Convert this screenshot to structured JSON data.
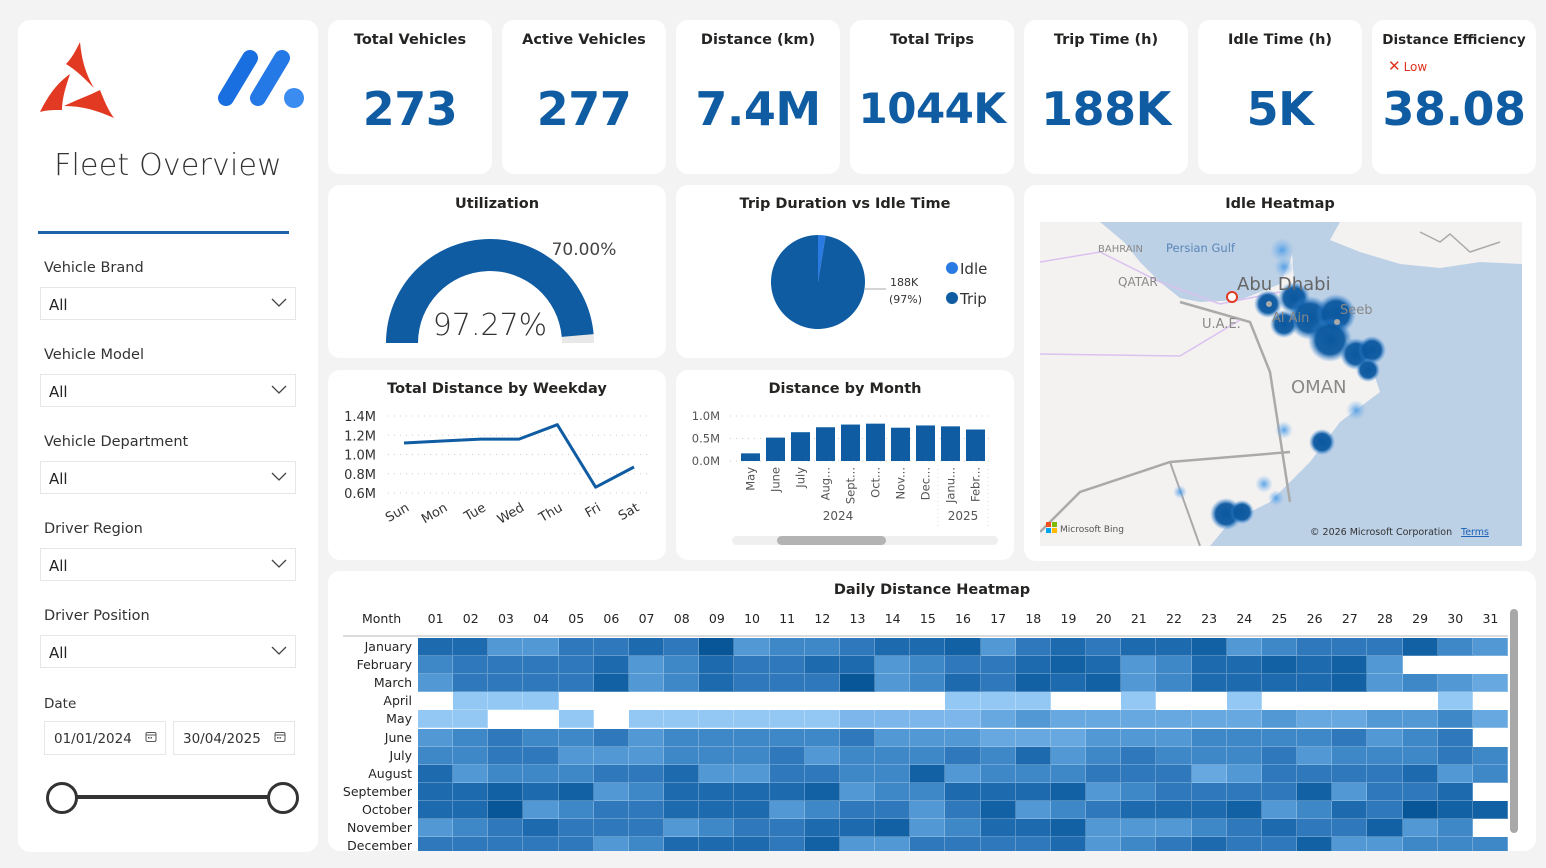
{
  "sidebar": {
    "title": "Fleet Overview",
    "logos": {
      "left": "red-tri-swirl-logo",
      "right": "blue-dots-logo"
    },
    "filters": [
      {
        "label": "Vehicle Brand",
        "value": "All"
      },
      {
        "label": "Vehicle Model",
        "value": "All"
      },
      {
        "label": "Vehicle Department",
        "value": "All"
      },
      {
        "label": "Driver Region",
        "value": "All"
      },
      {
        "label": "Driver Position",
        "value": "All"
      }
    ],
    "date": {
      "label": "Date",
      "start": "01/01/2024",
      "end": "30/04/2025",
      "icon": "calendar-icon"
    }
  },
  "kpis": [
    {
      "title": "Total Vehicles",
      "value": "273"
    },
    {
      "title": "Active Vehicles",
      "value": "277"
    },
    {
      "title": "Distance (km)",
      "value": "7.4M"
    },
    {
      "title": "Total Trips",
      "value": "1044K"
    },
    {
      "title": "Trip Time (h)",
      "value": "188K"
    },
    {
      "title": "Idle Time (h)",
      "value": "5K"
    },
    {
      "title": "Distance Efficiency",
      "value": "38.08",
      "flag": "Low",
      "flag_icon": "x-icon",
      "flag_color": "#e0331f"
    }
  ],
  "colors": {
    "primary": "#0f5ca3",
    "accent": "#1e62a8",
    "idle": "#2a7ae4",
    "gauge_bg": "#e8e8e8"
  },
  "utilization": {
    "title": "Utilization",
    "value_label": "97.27%",
    "value": 0.9727,
    "target_label": "70.00%",
    "target": 0.7
  },
  "pie": {
    "title": "Trip Duration vs Idle Time",
    "label_value": "188K",
    "label_pct": "(97%)",
    "legend": [
      {
        "name": "Idle",
        "color": "#2a7ae4"
      },
      {
        "name": "Trip",
        "color": "#0f5ca3"
      }
    ]
  },
  "map": {
    "title": "Idle Heatmap",
    "labels": {
      "bahrain": "BAHRAIN",
      "gulf": "Persian Gulf",
      "qatar": "QATAR",
      "abudhabi": "Abu Dhabi",
      "uae": "U.A.E.",
      "alain": "Al Ain",
      "seeb": "Seeb",
      "oman": "OMAN"
    },
    "attribution": "© 2026 Microsoft Corporation",
    "terms": "Terms",
    "brand": "Microsoft Bing"
  },
  "heatmap": {
    "title": "Daily Distance Heatmap",
    "row_header": "Month",
    "days": [
      "01",
      "02",
      "03",
      "04",
      "05",
      "06",
      "07",
      "08",
      "09",
      "10",
      "11",
      "12",
      "13",
      "14",
      "15",
      "16",
      "17",
      "18",
      "19",
      "20",
      "21",
      "22",
      "23",
      "24",
      "25",
      "26",
      "27",
      "28",
      "29",
      "30",
      "31"
    ],
    "months": [
      "January",
      "February",
      "March",
      "April",
      "May",
      "June",
      "July",
      "August",
      "September",
      "October",
      "November",
      "December"
    ],
    "scale_note": "0 = no data, 1 (lightest) to 9 (darkest)",
    "levels": [
      [
        7,
        7,
        4,
        4,
        6,
        6,
        7,
        6,
        9,
        4,
        5,
        5,
        6,
        7,
        7,
        8,
        4,
        6,
        7,
        6,
        7,
        7,
        8,
        4,
        5,
        6,
        6,
        6,
        8,
        5,
        4
      ],
      [
        5,
        6,
        6,
        6,
        6,
        7,
        4,
        5,
        7,
        6,
        6,
        7,
        7,
        4,
        5,
        6,
        6,
        7,
        8,
        7,
        4,
        5,
        7,
        7,
        8,
        7,
        8,
        4,
        0,
        0,
        0
      ],
      [
        4,
        6,
        6,
        6,
        6,
        8,
        4,
        5,
        7,
        6,
        6,
        6,
        9,
        4,
        5,
        7,
        6,
        8,
        7,
        8,
        4,
        5,
        7,
        7,
        7,
        7,
        8,
        4,
        5,
        4,
        3
      ],
      [
        0,
        1,
        1,
        1,
        0,
        0,
        0,
        0,
        0,
        0,
        0,
        0,
        0,
        0,
        0,
        1,
        1,
        1,
        0,
        0,
        1,
        0,
        0,
        1,
        0,
        0,
        0,
        0,
        0,
        1,
        0
      ],
      [
        1,
        1,
        0,
        0,
        1,
        0,
        1,
        1,
        1,
        1,
        1,
        1,
        2,
        2,
        2,
        2,
        3,
        4,
        3,
        3,
        3,
        3,
        3,
        3,
        4,
        3,
        3,
        4,
        4,
        5,
        3
      ],
      [
        4,
        5,
        6,
        5,
        5,
        6,
        4,
        5,
        5,
        5,
        5,
        5,
        6,
        4,
        4,
        4,
        3,
        3,
        3,
        4,
        4,
        4,
        5,
        5,
        5,
        5,
        6,
        4,
        5,
        6,
        0
      ],
      [
        5,
        5,
        6,
        6,
        4,
        4,
        4,
        5,
        5,
        5,
        6,
        4,
        5,
        5,
        5,
        6,
        5,
        7,
        4,
        5,
        6,
        5,
        5,
        5,
        6,
        4,
        5,
        5,
        5,
        6,
        5
      ],
      [
        7,
        4,
        5,
        5,
        5,
        6,
        6,
        7,
        4,
        4,
        6,
        6,
        5,
        5,
        8,
        4,
        5,
        5,
        5,
        6,
        6,
        6,
        3,
        4,
        6,
        6,
        6,
        6,
        7,
        4,
        5
      ],
      [
        7,
        7,
        8,
        7,
        8,
        4,
        5,
        7,
        7,
        7,
        7,
        8,
        4,
        5,
        5,
        7,
        7,
        7,
        8,
        4,
        5,
        6,
        6,
        6,
        6,
        8,
        4,
        6,
        6,
        7,
        0
      ],
      [
        7,
        7,
        9,
        4,
        5,
        6,
        6,
        7,
        7,
        7,
        4,
        5,
        6,
        6,
        4,
        6,
        8,
        4,
        5,
        6,
        7,
        7,
        7,
        8,
        4,
        5,
        7,
        6,
        9,
        8,
        8
      ],
      [
        4,
        5,
        6,
        7,
        6,
        6,
        6,
        4,
        5,
        6,
        6,
        7,
        7,
        8,
        4,
        5,
        7,
        7,
        8,
        4,
        4,
        4,
        5,
        6,
        7,
        6,
        6,
        8,
        4,
        5,
        0
      ],
      [
        6,
        6,
        6,
        6,
        6,
        4,
        5,
        7,
        7,
        7,
        6,
        8,
        4,
        4,
        6,
        6,
        6,
        6,
        7,
        4,
        5,
        6,
        7,
        6,
        6,
        8,
        4,
        4,
        5,
        5,
        5
      ]
    ]
  },
  "chart_data": [
    {
      "type": "line",
      "title": "Total Distance by Weekday",
      "categories": [
        "Sun",
        "Mon",
        "Tue",
        "Wed",
        "Thu",
        "Fri",
        "Sat"
      ],
      "values": [
        1.12,
        1.14,
        1.16,
        1.16,
        1.31,
        0.66,
        0.87
      ],
      "unit": "M",
      "yticks": [
        "0.6M",
        "0.8M",
        "1.0M",
        "1.2M",
        "1.4M"
      ],
      "ylim": [
        0.6,
        1.4
      ],
      "grid": true
    },
    {
      "type": "bar",
      "title": "Distance by Month",
      "categories": [
        "May",
        "June",
        "July",
        "Aug...",
        "Sept...",
        "Oct...",
        "Nov...",
        "Dec...",
        "Janu...",
        "Febr..."
      ],
      "year_groups": [
        {
          "label": "2024",
          "span": 8
        },
        {
          "label": "2025",
          "span": 2
        }
      ],
      "values": [
        0.17,
        0.52,
        0.64,
        0.75,
        0.81,
        0.83,
        0.74,
        0.79,
        0.77,
        0.7
      ],
      "unit": "M",
      "yticks": [
        "0.0M",
        "0.5M",
        "1.0M"
      ],
      "ylim": [
        0,
        1.0
      ],
      "grid": true
    },
    {
      "type": "pie",
      "title": "Trip Duration vs Idle Time",
      "slices": [
        {
          "name": "Trip",
          "value": 188,
          "pct": 97
        },
        {
          "name": "Idle",
          "value": 5,
          "pct": 3
        }
      ],
      "unit": "K hours"
    }
  ]
}
